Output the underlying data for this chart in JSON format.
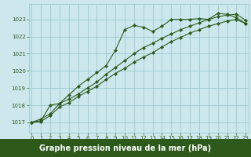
{
  "xlabel": "Graphe pression niveau de la mer (hPa)",
  "bg_color": "#cce8ed",
  "grid_color": "#9dc8d0",
  "line_color": "#2d5a1b",
  "ylim": [
    1016.4,
    1023.9
  ],
  "xlim": [
    -0.3,
    23.3
  ],
  "yticks": [
    1017,
    1018,
    1019,
    1020,
    1021,
    1022,
    1023
  ],
  "xticks": [
    0,
    1,
    2,
    3,
    4,
    5,
    6,
    7,
    8,
    9,
    10,
    11,
    12,
    13,
    14,
    15,
    16,
    17,
    18,
    19,
    20,
    21,
    22,
    23
  ],
  "line1_x": [
    0,
    1,
    2,
    3,
    4,
    5,
    6,
    7,
    8,
    9,
    10,
    11,
    12,
    13,
    14,
    15,
    16,
    17,
    18,
    19,
    20,
    21,
    22,
    23
  ],
  "line1_y": [
    1017.0,
    1017.2,
    1017.5,
    1018.1,
    1018.6,
    1019.1,
    1019.5,
    1019.9,
    1020.3,
    1021.2,
    1022.4,
    1022.65,
    1022.55,
    1022.3,
    1022.6,
    1023.0,
    1023.0,
    1023.0,
    1023.05,
    1023.0,
    1023.35,
    1023.3,
    1023.1,
    1022.75
  ],
  "line2_x": [
    0,
    1,
    2,
    3,
    4,
    5,
    6,
    7,
    8,
    9,
    10,
    11,
    12,
    13,
    14,
    15,
    16,
    17,
    18,
    19,
    20,
    21,
    22,
    23
  ],
  "line2_y": [
    1017.0,
    1017.05,
    1017.4,
    1017.9,
    1018.15,
    1018.5,
    1018.8,
    1019.1,
    1019.5,
    1019.85,
    1020.15,
    1020.5,
    1020.8,
    1021.05,
    1021.4,
    1021.7,
    1021.95,
    1022.2,
    1022.4,
    1022.6,
    1022.75,
    1022.9,
    1023.0,
    1022.75
  ],
  "line3_x": [
    0,
    1,
    2,
    3,
    4,
    5,
    6,
    7,
    8,
    9,
    10,
    11,
    12,
    13,
    14,
    15,
    16,
    17,
    18,
    19,
    20,
    21,
    22,
    23
  ],
  "line3_y": [
    1017.0,
    1017.1,
    1018.0,
    1018.1,
    1018.35,
    1018.65,
    1019.0,
    1019.35,
    1019.8,
    1020.2,
    1020.6,
    1021.0,
    1021.35,
    1021.6,
    1021.9,
    1022.15,
    1022.4,
    1022.6,
    1022.8,
    1023.0,
    1023.15,
    1023.25,
    1023.3,
    1022.95
  ],
  "marker": "D",
  "markersize": 2.2,
  "linewidth": 0.8,
  "tick_fontsize": 5.0,
  "label_fontsize": 7.0,
  "label_fontweight": "bold",
  "bottom_bg_color": "#2d5a1b"
}
